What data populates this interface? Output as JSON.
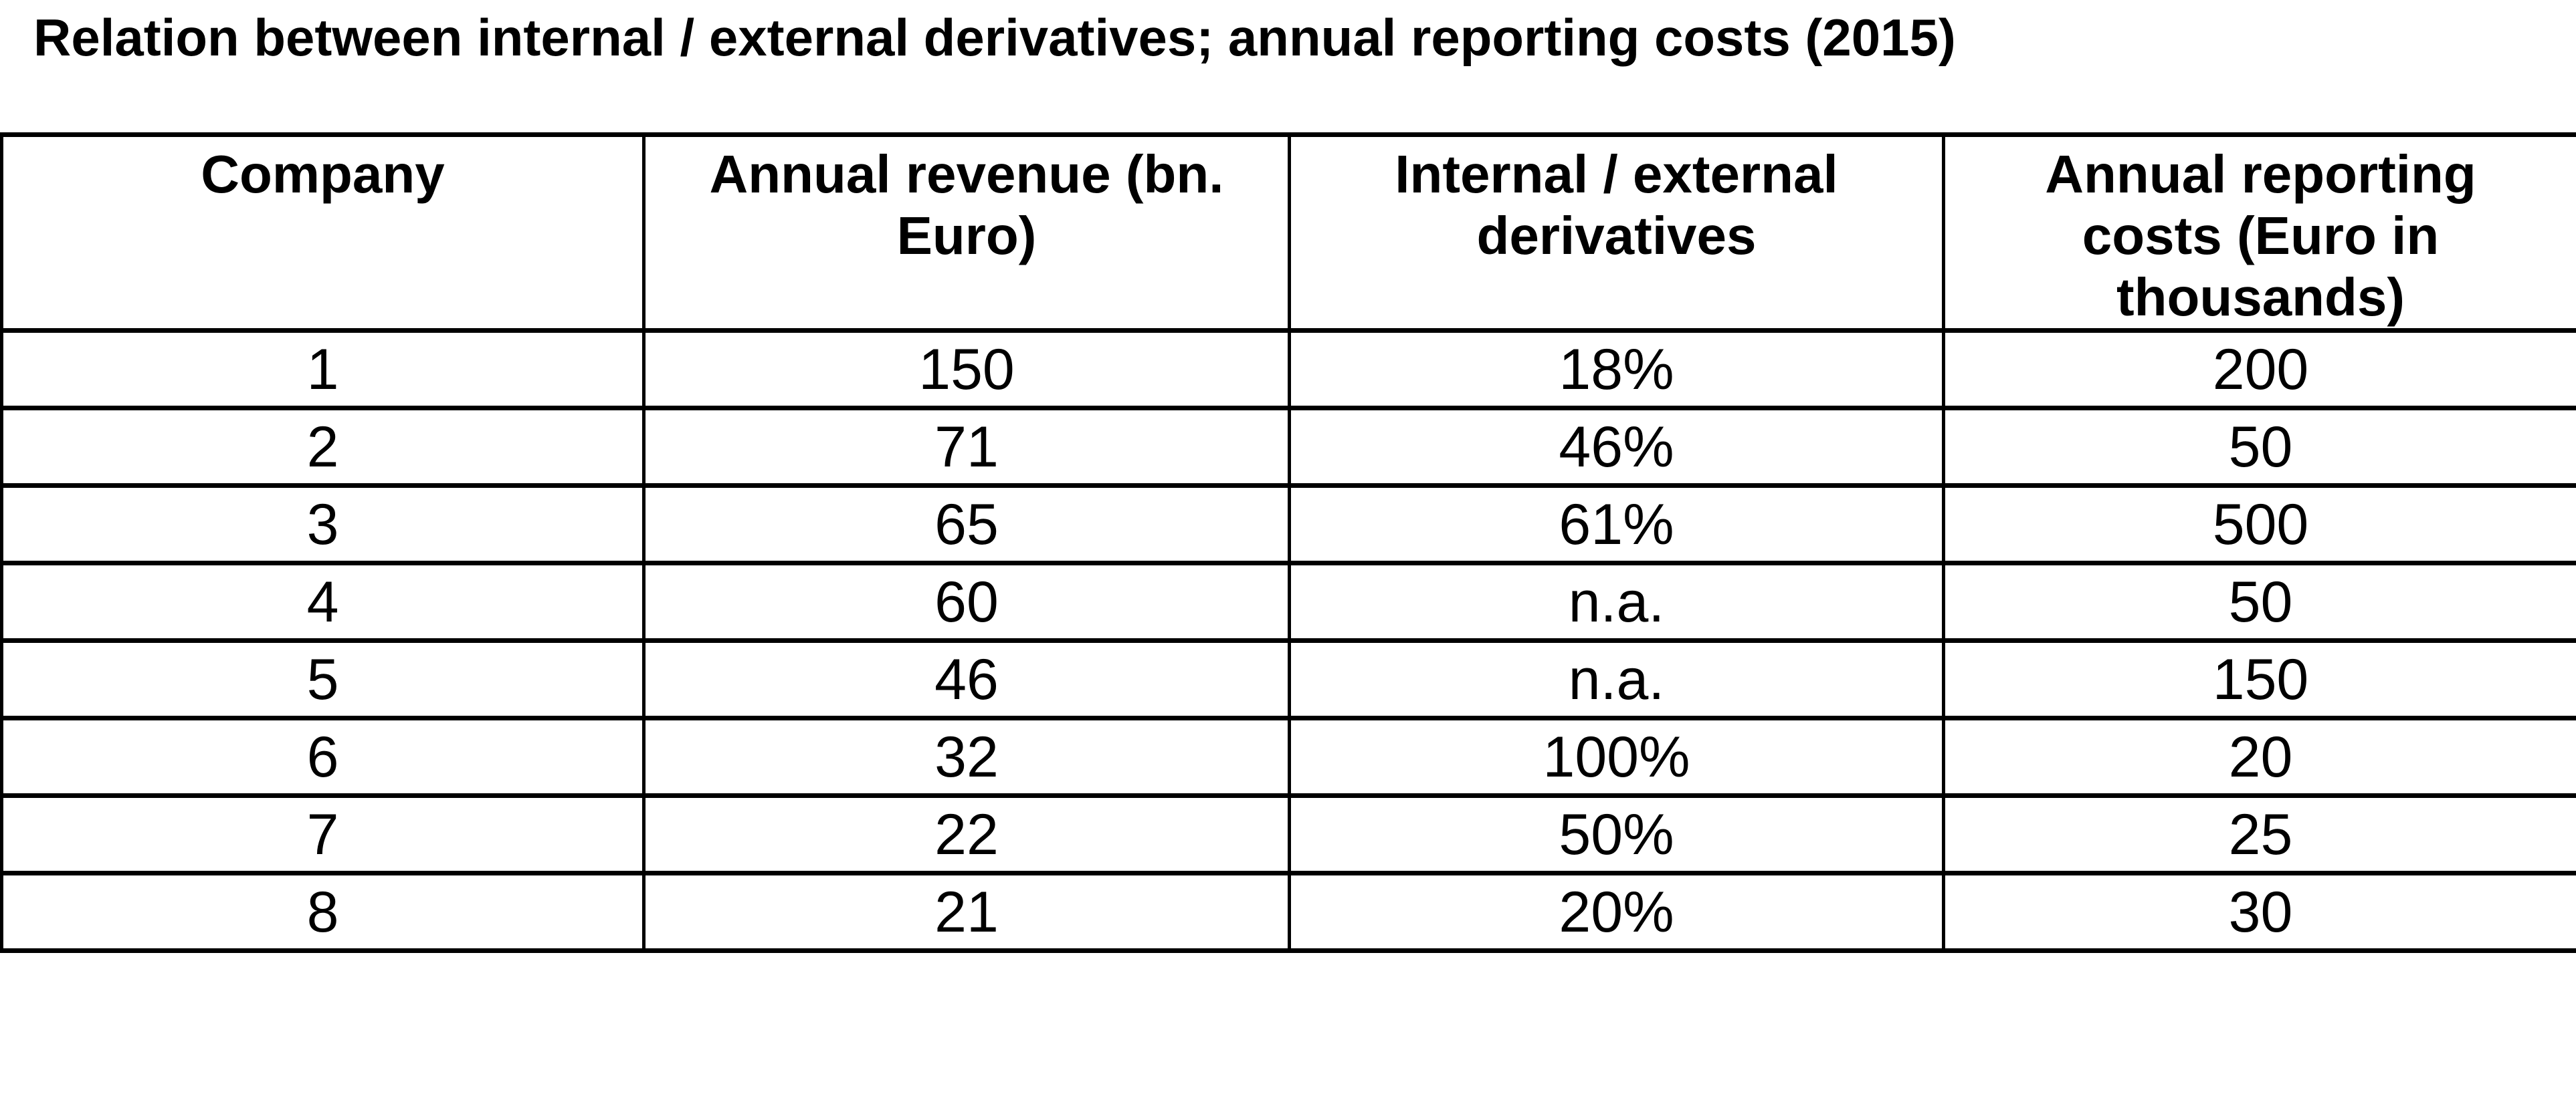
{
  "page": {
    "title": "Relation between internal / external derivatives; annual reporting costs (2015)"
  },
  "chart_data": {
    "type": "table",
    "title": "Relation between internal / external derivatives; annual reporting costs (2015)",
    "year": "2015",
    "columns": [
      "Company",
      "Annual revenue (bn. Euro)",
      "Internal / external derivatives",
      "Annual reporting costs (Euro in thousands)"
    ],
    "rows": [
      [
        "1",
        "150",
        "18%",
        "200"
      ],
      [
        "2",
        "71",
        "46%",
        "50"
      ],
      [
        "3",
        "65",
        "61%",
        "500"
      ],
      [
        "4",
        "60",
        "n.a.",
        "50"
      ],
      [
        "5",
        "46",
        "n.a.",
        "150"
      ],
      [
        "6",
        "32",
        "100%",
        "20"
      ],
      [
        "7",
        "22",
        "50%",
        "25"
      ],
      [
        "8",
        "21",
        "20%",
        "30"
      ]
    ],
    "layout": {
      "grid": "full table borders, thick horizontal rules, thin vertical rules",
      "header_style": "bold, top-aligned, centered",
      "data_style": "regular weight, centered",
      "text_color": "#000000",
      "background_color": "#ffffff",
      "border_color": "#000000"
    }
  }
}
